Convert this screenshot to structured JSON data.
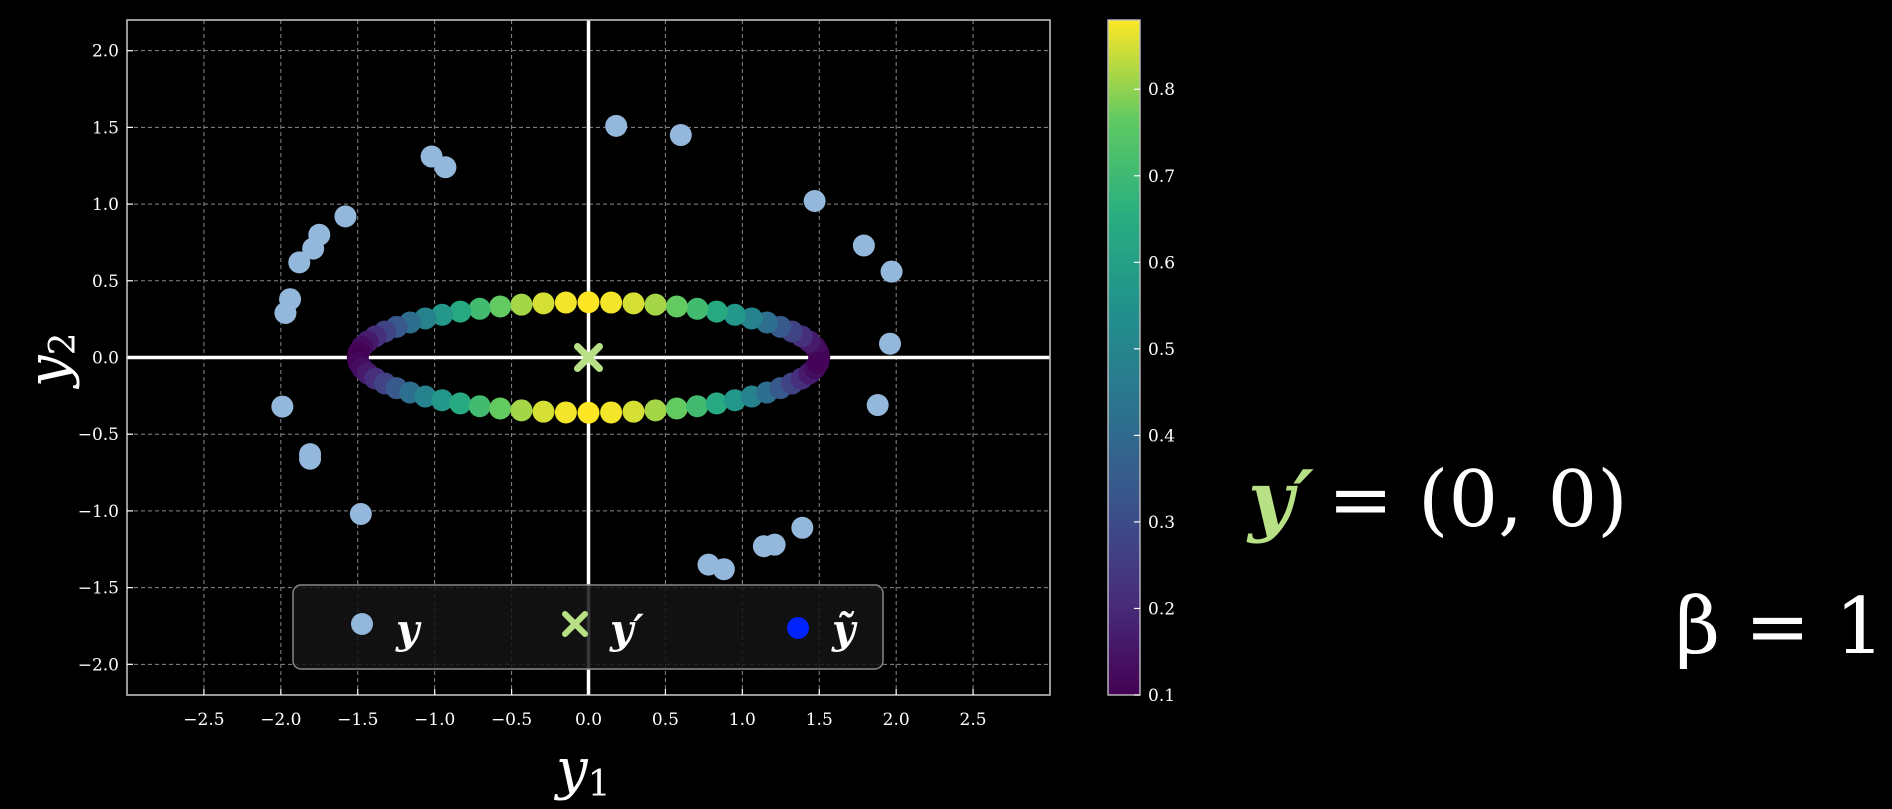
{
  "chart_data": {
    "type": "scatter",
    "xlabel": "y",
    "xlabel_sub": "1",
    "ylabel": "y",
    "ylabel_sub": "2",
    "xlim": [
      -3.0,
      3.0
    ],
    "ylim": [
      -2.2,
      2.2
    ],
    "x_ticks": [
      -2.5,
      -2.0,
      -1.5,
      -1.0,
      -0.5,
      0.0,
      0.5,
      1.0,
      1.5,
      2.0,
      2.5
    ],
    "x_tick_labels": [
      "−2.5",
      "−2.0",
      "−1.5",
      "−1.0",
      "−0.5",
      "0.0",
      "0.5",
      "1.0",
      "1.5",
      "2.0",
      "2.5"
    ],
    "y_ticks": [
      2.0,
      1.5,
      1.0,
      0.5,
      0.0,
      -0.5,
      -1.0,
      -1.5,
      -2.0
    ],
    "y_tick_labels": [
      "2.0",
      "1.5",
      "1.0",
      "0.5",
      "0.0",
      "−0.5",
      "−1.0",
      "−1.5",
      "−2.0"
    ],
    "grid": true,
    "background": "#000000",
    "colorbar": {
      "colormap": "viridis",
      "range": [
        0.1,
        0.88
      ],
      "ticks": [
        0.8,
        0.7,
        0.6,
        0.5,
        0.4,
        0.3,
        0.2,
        0.1
      ],
      "tick_labels": [
        "0.8",
        "0.7",
        "0.6",
        "0.5",
        "0.4",
        "0.3",
        "0.2",
        "0.1"
      ]
    },
    "series": [
      {
        "name": "y",
        "color": "#94b8db",
        "points": [
          [
            0.18,
            1.51
          ],
          [
            0.6,
            1.45
          ],
          [
            -1.02,
            1.31
          ],
          [
            -0.93,
            1.24
          ],
          [
            1.47,
            1.02
          ],
          [
            -1.58,
            0.92
          ],
          [
            -1.75,
            0.8
          ],
          [
            -1.79,
            0.71
          ],
          [
            -1.88,
            0.62
          ],
          [
            1.79,
            0.73
          ],
          [
            1.97,
            0.56
          ],
          [
            -1.94,
            0.38
          ],
          [
            -1.97,
            0.29
          ],
          [
            1.96,
            0.09
          ],
          [
            -1.99,
            -0.32
          ],
          [
            1.88,
            -0.31
          ],
          [
            -1.81,
            -0.63
          ],
          [
            -1.81,
            -0.66
          ],
          [
            -1.48,
            -1.02
          ],
          [
            1.39,
            -1.11
          ],
          [
            1.21,
            -1.22
          ],
          [
            1.14,
            -1.23
          ],
          [
            0.78,
            -1.35
          ],
          [
            0.88,
            -1.38
          ]
        ]
      },
      {
        "name": "y′",
        "color": "#b8e186",
        "marker": "x",
        "points": [
          [
            0.0,
            0.0
          ]
        ]
      },
      {
        "name": "ỹ",
        "color": "#0022ff",
        "colored_by": "colorbar",
        "ellipse": {
          "center": [
            0.0,
            0.0
          ],
          "rx": 1.5,
          "ry": 0.36,
          "count": 64
        }
      }
    ],
    "legend": {
      "placement": "bottom-center",
      "entries": [
        {
          "label": "y",
          "marker": "circle",
          "color": "#94b8db"
        },
        {
          "label": "y′",
          "marker": "x",
          "color": "#b8e186"
        },
        {
          "label": "ỹ",
          "marker": "circle",
          "color": "#0022ff"
        }
      ]
    }
  },
  "annotations": {
    "yprime_eq": {
      "lhs": "y′",
      "rhs": "= (0, 0)",
      "lhs_color": "#b8e186"
    },
    "beta_eq": {
      "text": "β = 1",
      "color": "#fff5c8"
    }
  }
}
